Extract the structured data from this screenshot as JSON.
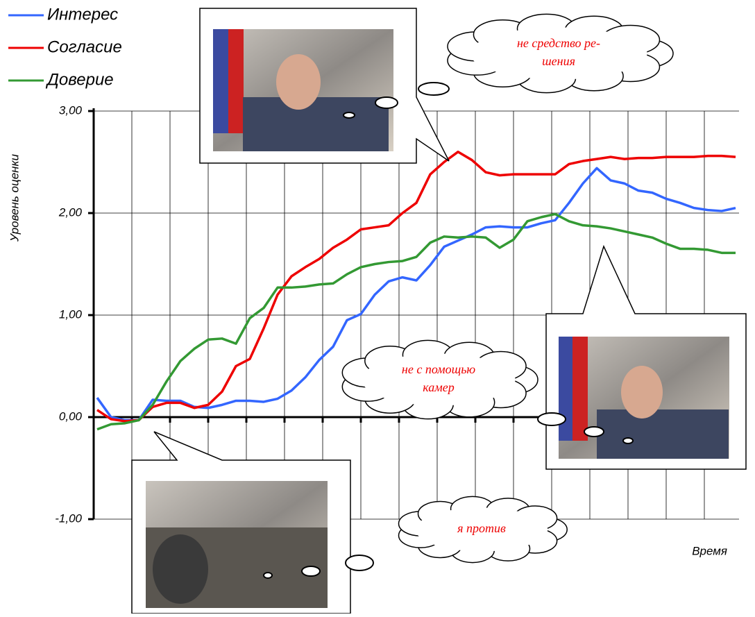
{
  "chart_data": {
    "type": "line",
    "y_label": "Уровень оценки",
    "x_label": "Время",
    "categories": [
      null,
      null,
      null,
      null,
      null,
      null,
      null,
      null,
      null,
      null,
      null,
      null,
      null,
      null,
      null,
      null,
      null,
      null,
      null,
      null,
      null,
      null,
      null,
      null,
      null,
      null,
      null,
      null,
      null,
      null,
      null,
      null,
      null,
      null,
      null,
      null,
      null,
      null,
      null,
      null,
      null,
      null,
      null,
      null,
      null,
      null,
      null
    ],
    "series": [
      {
        "name": "Интерес",
        "color": "#3366ff",
        "values": [
          0.19,
          0.0,
          -0.03,
          -0.03,
          0.17,
          0.16,
          0.16,
          0.1,
          0.09,
          0.12,
          0.16,
          0.16,
          0.15,
          0.18,
          0.26,
          0.39,
          0.56,
          0.69,
          0.95,
          1.01,
          1.2,
          1.33,
          1.37,
          1.34,
          1.49,
          1.67,
          1.73,
          1.79,
          1.86,
          1.87,
          1.86,
          1.86,
          1.9,
          1.93,
          2.1,
          2.29,
          2.44,
          2.32,
          2.29,
          2.22,
          2.2,
          2.14,
          2.1,
          2.05,
          2.03,
          2.02,
          2.05
        ]
      },
      {
        "name": "Согласие",
        "color": "#ee0000",
        "values": [
          0.07,
          -0.02,
          -0.04,
          -0.03,
          0.1,
          0.14,
          0.14,
          0.09,
          0.12,
          0.25,
          0.5,
          0.57,
          0.87,
          1.2,
          1.38,
          1.47,
          1.55,
          1.66,
          1.74,
          1.84,
          1.86,
          1.88,
          2.0,
          2.1,
          2.38,
          2.5,
          2.6,
          2.52,
          2.4,
          2.37,
          2.38,
          2.38,
          2.38,
          2.38,
          2.48,
          2.51,
          2.53,
          2.55,
          2.53,
          2.54,
          2.54,
          2.55,
          2.55,
          2.55,
          2.56,
          2.56,
          2.55
        ]
      },
      {
        "name": "Доверие",
        "color": "#339933",
        "values": [
          -0.12,
          -0.07,
          -0.06,
          -0.03,
          0.12,
          0.35,
          0.55,
          0.67,
          0.76,
          0.77,
          0.72,
          0.97,
          1.07,
          1.27,
          1.27,
          1.28,
          1.3,
          1.31,
          1.4,
          1.47,
          1.5,
          1.52,
          1.53,
          1.57,
          1.71,
          1.77,
          1.76,
          1.77,
          1.76,
          1.66,
          1.74,
          1.92,
          1.96,
          1.99,
          1.92,
          1.88,
          1.87,
          1.85,
          1.82,
          1.79,
          1.76,
          1.7,
          1.65,
          1.65,
          1.64,
          1.61,
          1.61
        ]
      }
    ],
    "ylim": [
      -1,
      3
    ],
    "yticks": [
      {
        "value": -1,
        "label": "-1,00"
      },
      {
        "value": 0,
        "label": "0,00"
      },
      {
        "value": 1,
        "label": "1,00"
      },
      {
        "value": 2,
        "label": "2,00"
      },
      {
        "value": 3,
        "label": "3,00"
      }
    ],
    "grid": true,
    "annotations": [
      {
        "lines": [
          "не средство ре-",
          "шения"
        ]
      },
      {
        "lines": [
          "не с помощью",
          "камер"
        ]
      },
      {
        "lines": [
          "я против"
        ]
      }
    ]
  }
}
